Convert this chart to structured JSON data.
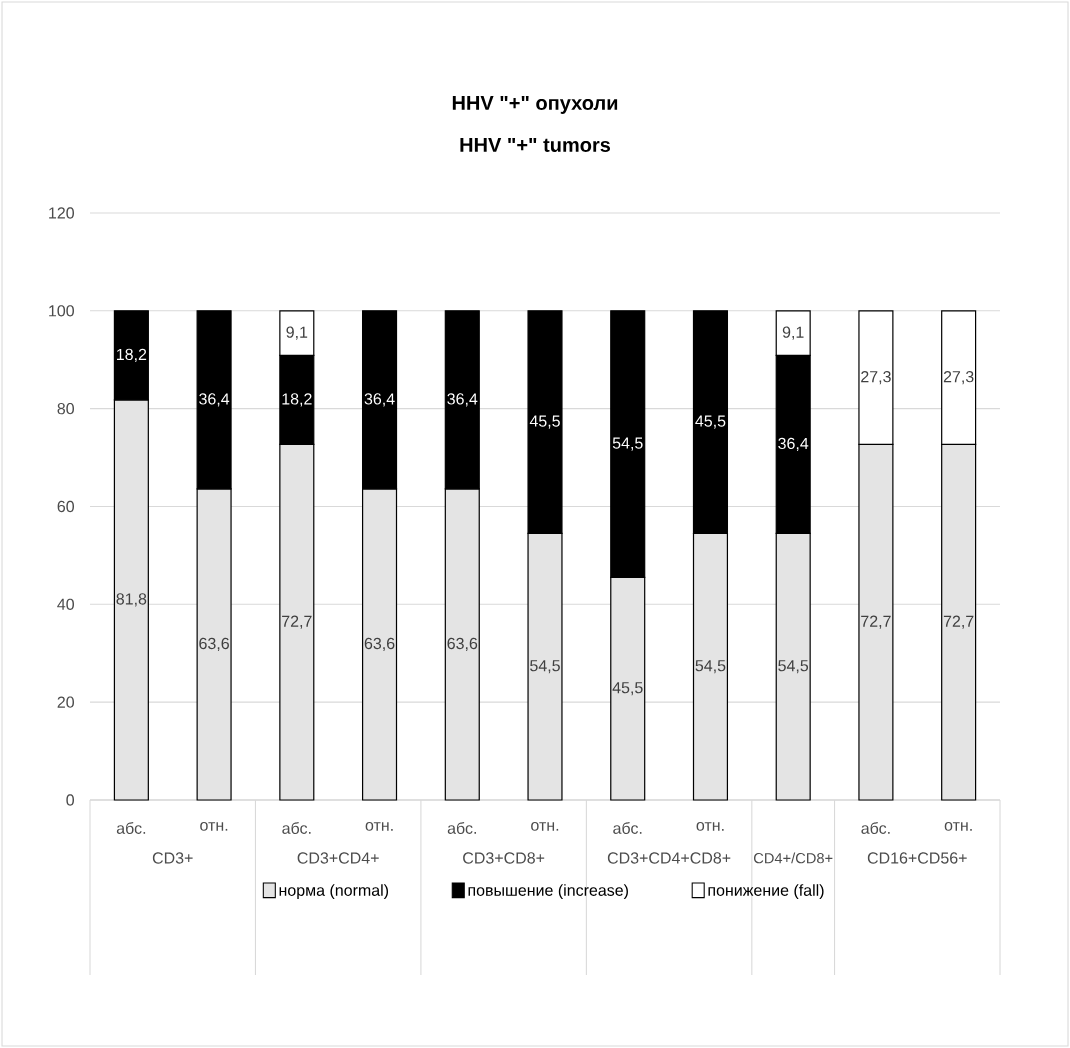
{
  "chart_data": {
    "type": "bar",
    "stacked": true,
    "title": "HHV \"+\" опухоли",
    "subtitle": "HHV \"+\" tumors",
    "categories": [
      "абс.",
      "отн.",
      "абс.",
      "отн.",
      "абс.",
      "отн.",
      "абс.",
      "отн.",
      null,
      "абс.",
      "отн."
    ],
    "annotations": [
      "CD3+",
      "CD3+CD4+",
      "CD3+CD8+",
      "CD3+CD4+CD8+",
      "CD4+/CD8+",
      "CD16+CD56+"
    ],
    "series": [
      {
        "name": "норма (normal)",
        "color": "#e4e4e4",
        "values": [
          81.8,
          63.6,
          72.7,
          63.6,
          63.6,
          54.5,
          45.5,
          54.5,
          54.5,
          72.7,
          72.7
        ],
        "value_labels": [
          "81,8",
          "63,6",
          "72,7",
          "63,6",
          "63,6",
          "54,5",
          "45,5",
          "54,5",
          "54,5",
          "72,7",
          "72,7"
        ]
      },
      {
        "name": "повышение (increase)",
        "color": "#000000",
        "values": [
          18.2,
          36.4,
          18.2,
          36.4,
          36.4,
          45.5,
          54.5,
          45.5,
          36.4,
          null,
          null
        ],
        "value_labels": [
          "18,2",
          "36,4",
          "18,2",
          "36,4",
          "36,4",
          "45,5",
          "54,5",
          "45,5",
          "36,4",
          null,
          null
        ]
      },
      {
        "name": "понижение (fall)",
        "color": "#ffffff",
        "values": [
          null,
          null,
          9.1,
          null,
          null,
          null,
          null,
          null,
          9.1,
          27.3,
          27.3
        ],
        "value_labels": [
          null,
          null,
          "9,1",
          null,
          null,
          null,
          null,
          null,
          "9,1",
          "27,3",
          "27,3"
        ]
      }
    ],
    "ylim": [
      0,
      120
    ],
    "yticks": [
      0,
      20,
      40,
      60,
      80,
      100,
      120
    ],
    "grid": "y",
    "legend": "bottom"
  }
}
